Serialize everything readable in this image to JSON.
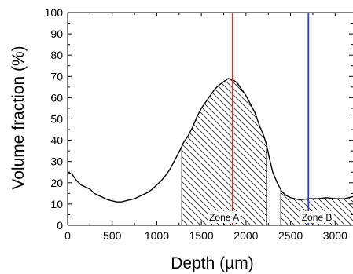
{
  "chart_data": {
    "type": "line",
    "xlabel": "Depth (µm)",
    "ylabel": "Volume fraction (%)",
    "xlim": [
      0,
      3200
    ],
    "ylim": [
      0,
      100
    ],
    "x_ticks": [
      "0",
      "500",
      "1000",
      "1500",
      "2000",
      "2500",
      "3000"
    ],
    "y_ticks": [
      "0",
      "10",
      "20",
      "30",
      "40",
      "50",
      "60",
      "70",
      "80",
      "90",
      "100"
    ],
    "grid": false,
    "series": [
      {
        "color": "#000000",
        "points": [
          [
            0,
            25
          ],
          [
            50,
            24
          ],
          [
            100,
            21
          ],
          [
            150,
            19
          ],
          [
            200,
            18
          ],
          [
            250,
            17
          ],
          [
            300,
            15
          ],
          [
            350,
            14
          ],
          [
            400,
            13
          ],
          [
            450,
            12
          ],
          [
            500,
            11.5
          ],
          [
            550,
            11
          ],
          [
            600,
            11
          ],
          [
            650,
            11.5
          ],
          [
            700,
            12
          ],
          [
            750,
            12.5
          ],
          [
            800,
            13.5
          ],
          [
            850,
            14.5
          ],
          [
            900,
            15.5
          ],
          [
            950,
            17
          ],
          [
            1000,
            19
          ],
          [
            1050,
            21
          ],
          [
            1100,
            23.5
          ],
          [
            1150,
            26.5
          ],
          [
            1200,
            30.5
          ],
          [
            1250,
            34.5
          ],
          [
            1280,
            37
          ],
          [
            1300,
            39
          ],
          [
            1350,
            42
          ],
          [
            1400,
            46
          ],
          [
            1450,
            51
          ],
          [
            1500,
            55
          ],
          [
            1550,
            58
          ],
          [
            1600,
            61
          ],
          [
            1650,
            64
          ],
          [
            1700,
            66
          ],
          [
            1750,
            67.5
          ],
          [
            1800,
            69
          ],
          [
            1850,
            68.5
          ],
          [
            1900,
            67
          ],
          [
            1950,
            64
          ],
          [
            2000,
            61
          ],
          [
            2050,
            57
          ],
          [
            2100,
            53
          ],
          [
            2150,
            47
          ],
          [
            2200,
            42
          ],
          [
            2230,
            38
          ],
          [
            2260,
            32
          ],
          [
            2300,
            25
          ],
          [
            2350,
            20
          ],
          [
            2400,
            16
          ],
          [
            2450,
            14
          ],
          [
            2500,
            13
          ],
          [
            2550,
            12.5
          ],
          [
            2600,
            12
          ],
          [
            2700,
            12.5
          ],
          [
            2800,
            12.5
          ],
          [
            2900,
            13
          ],
          [
            3000,
            12.5
          ],
          [
            3100,
            12.5
          ],
          [
            3200,
            13.5
          ]
        ]
      }
    ],
    "vertical_lines": [
      {
        "x": 1850,
        "color": "#e32b2b"
      },
      {
        "x": 2700,
        "color": "#2d3bd4"
      }
    ],
    "zones": [
      {
        "label": "Zone A",
        "from": 1280,
        "to": 2230
      },
      {
        "label": "Zone B",
        "from": 2390,
        "to": 3200
      }
    ]
  }
}
